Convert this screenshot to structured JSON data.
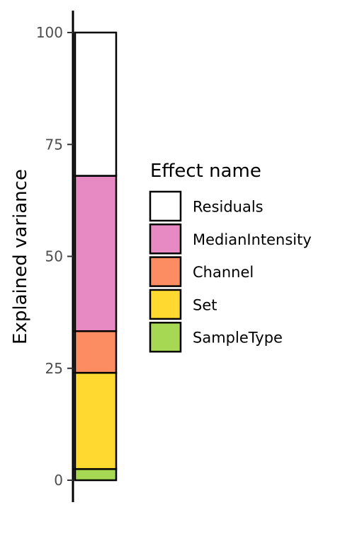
{
  "chart_data": {
    "type": "bar",
    "stacked": true,
    "categories": [
      ""
    ],
    "ylabel": "Explained variance",
    "xlabel": "",
    "ylim": [
      0,
      100
    ],
    "yticks": [
      0,
      25,
      50,
      75,
      100
    ],
    "grid": false,
    "legend": {
      "title": "Effect name",
      "position": "right"
    },
    "series": [
      {
        "name": "SampleType",
        "values": [
          2.5
        ],
        "color": "#A6D854"
      },
      {
        "name": "Set",
        "values": [
          21.5
        ],
        "color": "#FFD92F"
      },
      {
        "name": "Channel",
        "values": [
          9.3
        ],
        "color": "#FC8D62"
      },
      {
        "name": "MedianIntensity",
        "values": [
          34.7
        ],
        "color": "#E78AC3"
      },
      {
        "name": "Residuals",
        "values": [
          32.0
        ],
        "color": "#FFFFFF"
      }
    ],
    "legend_order": [
      "Residuals",
      "MedianIntensity",
      "Channel",
      "Set",
      "SampleType"
    ]
  }
}
